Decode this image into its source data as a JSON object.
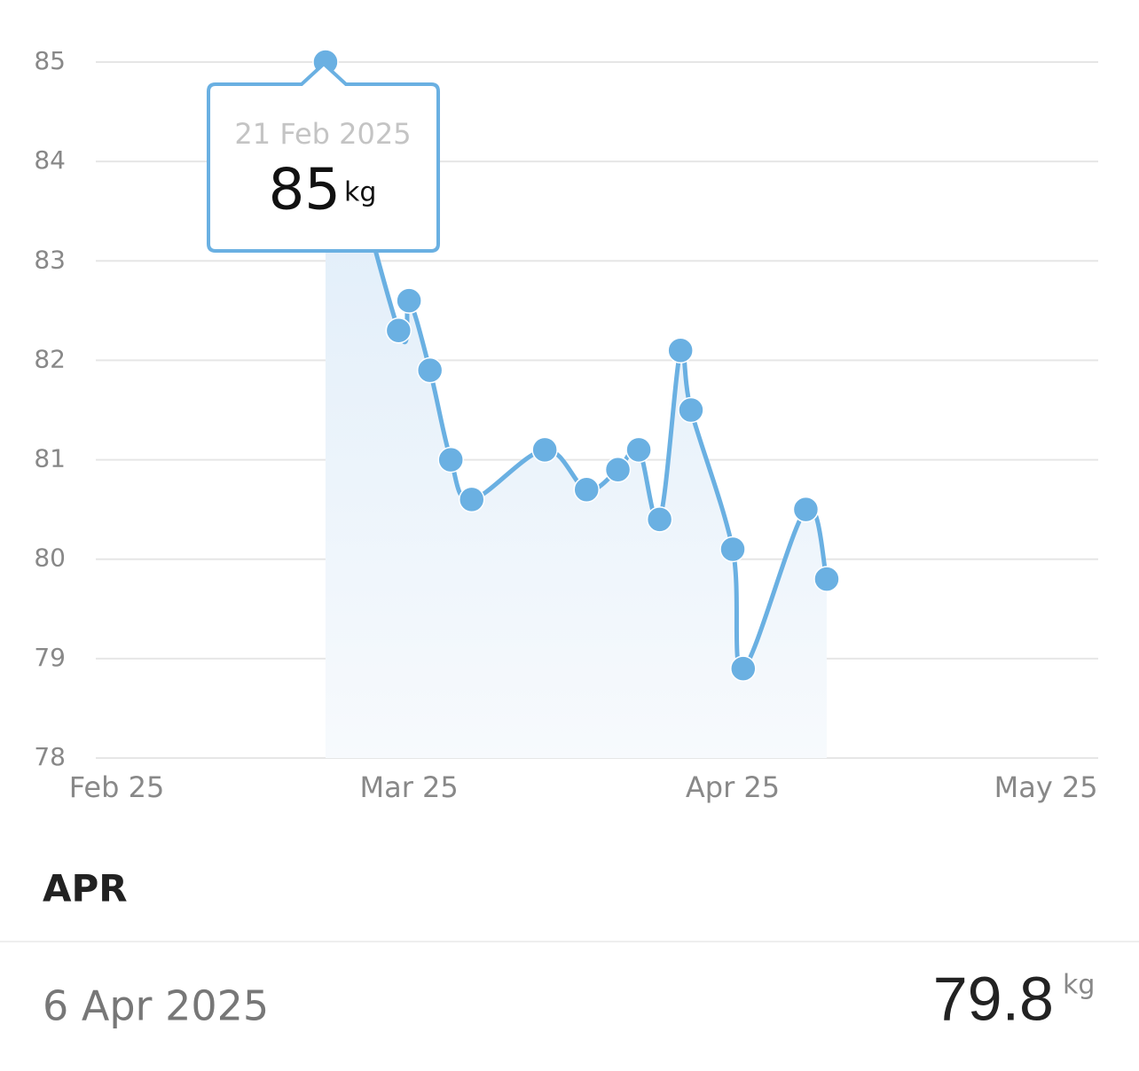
{
  "chart_data": {
    "type": "line",
    "x": [
      "2025-02-21",
      "2025-02-28",
      "2025-03-01",
      "2025-03-03",
      "2025-03-05",
      "2025-03-07",
      "2025-03-14",
      "2025-03-18",
      "2025-03-21",
      "2025-03-23",
      "2025-03-25",
      "2025-03-27",
      "2025-03-28",
      "2025-04-01",
      "2025-04-02",
      "2025-04-08",
      "2025-04-10"
    ],
    "series": [
      {
        "color": "#6ab0e2",
        "values": [
          85,
          82.3,
          82.6,
          81.9,
          81.0,
          80.6,
          81.1,
          80.7,
          80.9,
          81.1,
          80.4,
          82.1,
          81.5,
          80.1,
          78.9,
          80.5,
          79.8
        ]
      }
    ],
    "xlim": [
      "2025-01-30",
      "2025-05-06"
    ],
    "xticks": [
      {
        "value": "2025-02-01",
        "label": "Feb 25"
      },
      {
        "value": "2025-03-01",
        "label": "Mar 25"
      },
      {
        "value": "2025-04-01",
        "label": "Apr 25"
      },
      {
        "value": "2025-05-01",
        "label": "May 25"
      }
    ],
    "ylim": [
      78,
      85
    ],
    "yticks": [
      78,
      79,
      80,
      81,
      82,
      83,
      84,
      85
    ],
    "grid": true
  },
  "tooltip": {
    "date": "21 Feb 2025",
    "value": "85",
    "unit": "kg"
  },
  "section": {
    "title": "APR"
  },
  "entry": {
    "date": "6 Apr 2025",
    "value": "79.8",
    "unit": "kg"
  }
}
